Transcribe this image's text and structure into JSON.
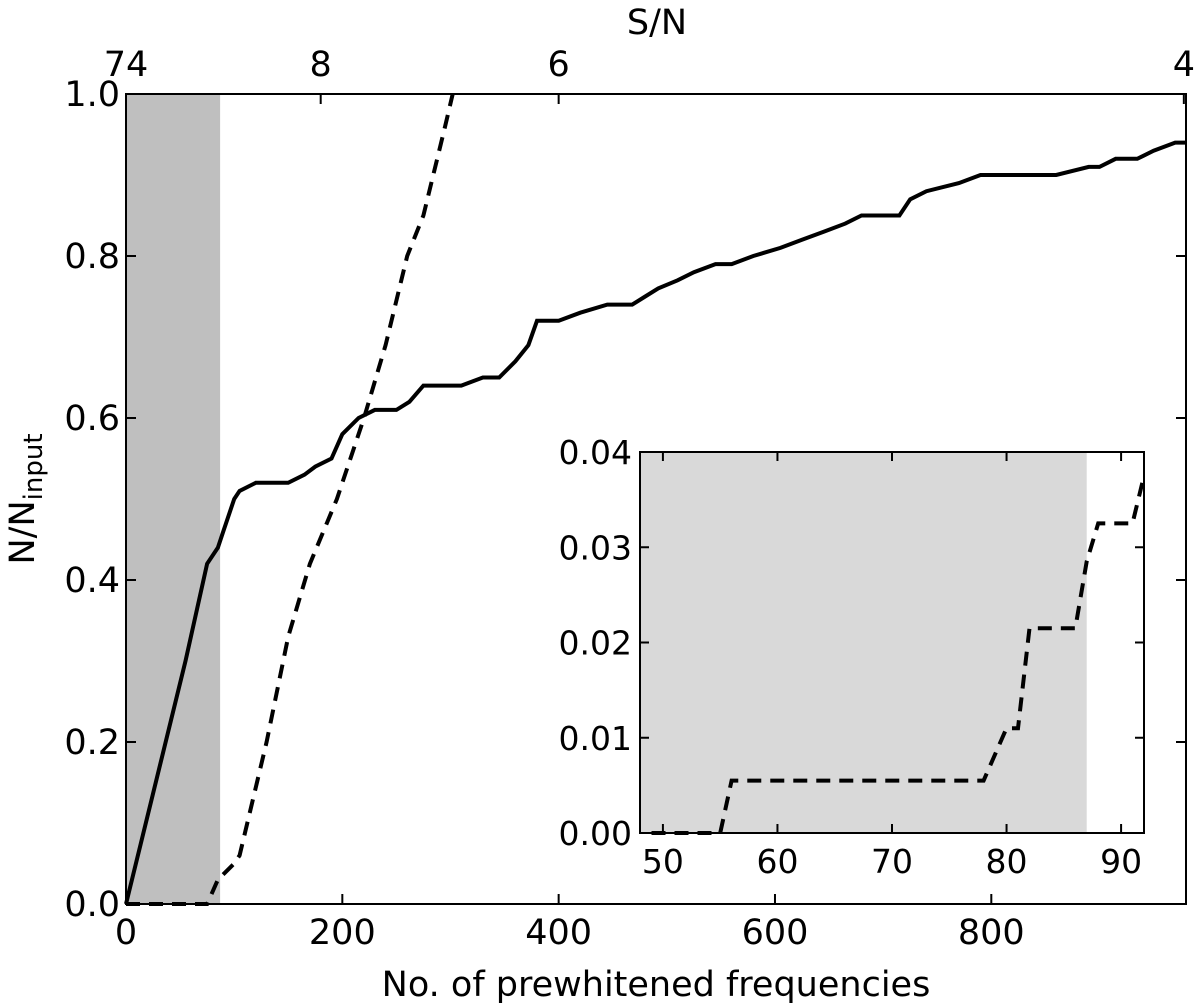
{
  "chart_data": {
    "type": "line",
    "main": {
      "xlabel": "No. of prewhitened frequencies",
      "ylabel": "N/N",
      "ylabel_subscript": "input",
      "top_xlabel": "S/N",
      "xlim": [
        0,
        980
      ],
      "ylim": [
        0,
        1.0
      ],
      "xticks": [
        0,
        200,
        400,
        600,
        800
      ],
      "xtick_labels": [
        "0",
        "200",
        "400",
        "600",
        "800"
      ],
      "yticks": [
        0,
        0.2,
        0.4,
        0.6,
        0.8,
        1.0
      ],
      "ytick_labels": [
        "0.0",
        "0.2",
        "0.4",
        "0.6",
        "0.8",
        "1.0"
      ],
      "top_ticks": [
        {
          "x": 0,
          "label": "74"
        },
        {
          "x": 180,
          "label": "8"
        },
        {
          "x": 400,
          "label": "6"
        },
        {
          "x": 978,
          "label": "4"
        }
      ],
      "shaded_region": [
        0,
        87
      ],
      "series": [
        {
          "style": "solid",
          "points": [
            [
              0,
              0
            ],
            [
              55,
              0.3
            ],
            [
              75,
              0.42
            ],
            [
              85,
              0.44
            ],
            [
              90,
              0.46
            ],
            [
              100,
              0.5
            ],
            [
              105,
              0.51
            ],
            [
              120,
              0.52
            ],
            [
              150,
              0.52
            ],
            [
              165,
              0.53
            ],
            [
              175,
              0.54
            ],
            [
              190,
              0.55
            ],
            [
              200,
              0.58
            ],
            [
              215,
              0.6
            ],
            [
              230,
              0.61
            ],
            [
              250,
              0.61
            ],
            [
              262,
              0.62
            ],
            [
              275,
              0.64
            ],
            [
              310,
              0.64
            ],
            [
              330,
              0.65
            ],
            [
              345,
              0.65
            ],
            [
              360,
              0.67
            ],
            [
              372,
              0.69
            ],
            [
              380,
              0.72
            ],
            [
              400,
              0.72
            ],
            [
              420,
              0.73
            ],
            [
              445,
              0.74
            ],
            [
              468,
              0.74
            ],
            [
              480,
              0.75
            ],
            [
              492,
              0.76
            ],
            [
              510,
              0.77
            ],
            [
              525,
              0.78
            ],
            [
              545,
              0.79
            ],
            [
              560,
              0.79
            ],
            [
              580,
              0.8
            ],
            [
              605,
              0.81
            ],
            [
              625,
              0.82
            ],
            [
              645,
              0.83
            ],
            [
              665,
              0.84
            ],
            [
              680,
              0.85
            ],
            [
              702,
              0.85
            ],
            [
              715,
              0.85
            ],
            [
              725,
              0.87
            ],
            [
              740,
              0.88
            ],
            [
              770,
              0.89
            ],
            [
              790,
              0.9
            ],
            [
              810,
              0.9
            ],
            [
              860,
              0.9
            ],
            [
              890,
              0.91
            ],
            [
              900,
              0.91
            ],
            [
              915,
              0.92
            ],
            [
              935,
              0.92
            ],
            [
              950,
              0.93
            ],
            [
              970,
              0.94
            ],
            [
              980,
              0.94
            ]
          ]
        },
        {
          "style": "dashed",
          "points": [
            [
              0,
              0
            ],
            [
              50,
              0
            ],
            [
              75,
              0
            ],
            [
              85,
              0.03
            ],
            [
              100,
              0.05
            ],
            [
              105,
              0.06
            ],
            [
              130,
              0.2
            ],
            [
              150,
              0.33
            ],
            [
              170,
              0.42
            ],
            [
              195,
              0.5
            ],
            [
              220,
              0.6
            ],
            [
              240,
              0.69
            ],
            [
              260,
              0.8
            ],
            [
              275,
              0.85
            ],
            [
              295,
              0.96
            ],
            [
              302,
              1.0
            ]
          ]
        }
      ]
    },
    "inset": {
      "xlim": [
        48,
        92
      ],
      "ylim": [
        0,
        0.04
      ],
      "xticks": [
        50,
        60,
        70,
        80,
        90
      ],
      "xtick_labels": [
        "50",
        "60",
        "70",
        "80",
        "90"
      ],
      "yticks": [
        0,
        0.01,
        0.02,
        0.03,
        0.04
      ],
      "ytick_labels": [
        "0.00",
        "0.01",
        "0.02",
        "0.03",
        "0.04"
      ],
      "shaded_region": [
        48,
        87
      ],
      "series": [
        {
          "style": "dashed",
          "points": [
            [
              49,
              0
            ],
            [
              55,
              0
            ],
            [
              56,
              0.0055
            ],
            [
              70,
              0.0055
            ],
            [
              78,
              0.0055
            ],
            [
              80,
              0.011
            ],
            [
              81,
              0.011
            ],
            [
              82,
              0.0215
            ],
            [
              84,
              0.0215
            ],
            [
              86,
              0.0215
            ],
            [
              87,
              0.0285
            ],
            [
              88,
              0.0325
            ],
            [
              90,
              0.0325
            ],
            [
              91,
              0.0325
            ],
            [
              92,
              0.0375
            ]
          ]
        }
      ]
    }
  }
}
